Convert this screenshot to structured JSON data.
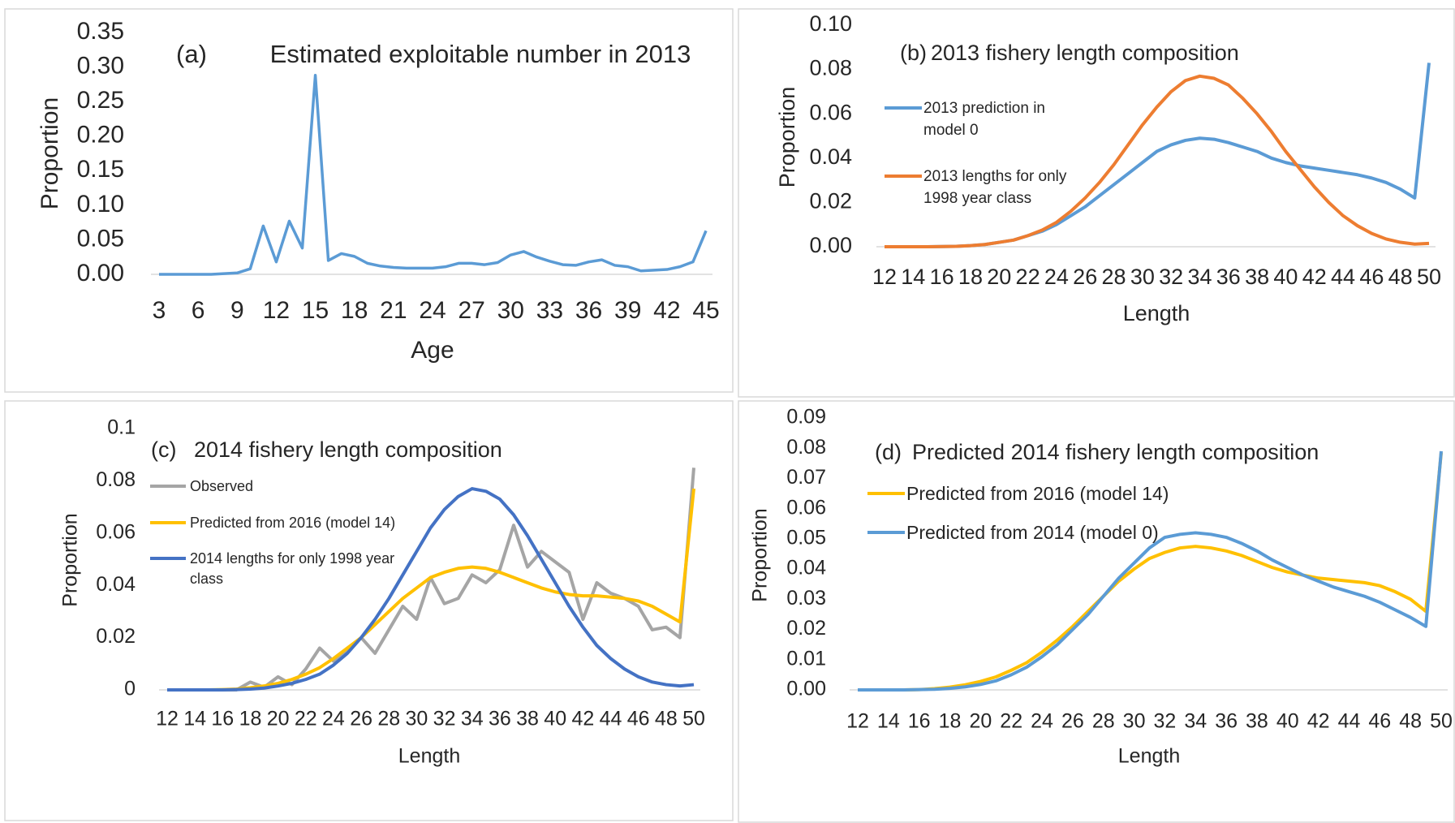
{
  "chart_data": [
    {
      "type": "line",
      "label": "(a)",
      "title": "Estimated exploitable number in 2013",
      "x_label": "Age",
      "y_label": "Proportion",
      "x": [
        3,
        4,
        5,
        6,
        7,
        8,
        9,
        10,
        11,
        12,
        13,
        14,
        15,
        16,
        17,
        18,
        19,
        20,
        21,
        22,
        23,
        24,
        25,
        26,
        27,
        28,
        29,
        30,
        31,
        32,
        33,
        34,
        35,
        36,
        37,
        38,
        39,
        40,
        41,
        42,
        43,
        44,
        45
      ],
      "xlim": [
        3,
        45
      ],
      "xticks": [
        3,
        6,
        9,
        12,
        15,
        18,
        21,
        24,
        27,
        30,
        33,
        36,
        39,
        42,
        45
      ],
      "ylim": [
        0,
        0.35
      ],
      "yticks": [
        {
          "value": 0,
          "label": "0.00"
        },
        0.05,
        {
          "value": 0.1,
          "label": "0.10"
        },
        0.15,
        {
          "value": 0.2,
          "label": "0.20"
        },
        0.25,
        {
          "value": 0.3,
          "label": "0.30"
        },
        0.35
      ],
      "series": [
        {
          "color": "#5b9bd5",
          "values": [
            0,
            0,
            0,
            0,
            0,
            0.001,
            0.002,
            0.008,
            0.07,
            0.018,
            0.077,
            0.038,
            0.288,
            0.02,
            0.03,
            0.026,
            0.016,
            0.012,
            0.01,
            0.009,
            0.009,
            0.009,
            0.011,
            0.016,
            0.016,
            0.014,
            0.017,
            0.028,
            0.033,
            0.025,
            0.019,
            0.014,
            0.013,
            0.018,
            0.021,
            0.013,
            0.011,
            0.005,
            0.006,
            0.007,
            0.011,
            0.018,
            0.063
          ]
        }
      ]
    },
    {
      "type": "line",
      "label": "(b)",
      "title": "2013 fishery length composition",
      "x_label": "Length",
      "y_label": "Proportion",
      "x": [
        12,
        13,
        14,
        15,
        16,
        17,
        18,
        19,
        20,
        21,
        22,
        23,
        24,
        25,
        26,
        27,
        28,
        29,
        30,
        31,
        32,
        33,
        34,
        35,
        36,
        37,
        38,
        39,
        40,
        41,
        42,
        43,
        44,
        45,
        46,
        47,
        48,
        49,
        50
      ],
      "xlim": [
        12,
        50
      ],
      "xticks": [
        12,
        14,
        16,
        18,
        20,
        22,
        24,
        26,
        28,
        30,
        32,
        34,
        36,
        38,
        40,
        42,
        44,
        46,
        48,
        50
      ],
      "ylim": [
        0,
        0.1
      ],
      "yticks": [
        {
          "value": 0,
          "label": "0.00"
        },
        0.02,
        0.04,
        0.06,
        0.08,
        {
          "value": 0.1,
          "label": "0.10"
        }
      ],
      "series": [
        {
          "name": "2013 prediction in model 0",
          "color": "#5b9bd5",
          "values": [
            0,
            0,
            0,
            0,
            0.0001,
            0.0002,
            0.0005,
            0.001,
            0.002,
            0.003,
            0.005,
            0.007,
            0.01,
            0.014,
            0.018,
            0.023,
            0.028,
            0.033,
            0.038,
            0.043,
            0.046,
            0.048,
            0.049,
            0.0485,
            0.047,
            0.045,
            0.043,
            0.04,
            0.038,
            0.0365,
            0.0355,
            0.0345,
            0.0335,
            0.0325,
            0.031,
            0.029,
            0.026,
            0.022,
            0.083
          ]
        },
        {
          "name": "2013 lengths for only 1998 year class",
          "color": "#ed7d31",
          "values": [
            0,
            0,
            0,
            0,
            0.0001,
            0.0002,
            0.0005,
            0.001,
            0.002,
            0.003,
            0.005,
            0.0075,
            0.011,
            0.016,
            0.022,
            0.029,
            0.037,
            0.046,
            0.055,
            0.063,
            0.07,
            0.075,
            0.077,
            0.076,
            0.073,
            0.067,
            0.06,
            0.052,
            0.043,
            0.035,
            0.027,
            0.02,
            0.014,
            0.0095,
            0.006,
            0.0035,
            0.002,
            0.0012,
            0.0015
          ]
        }
      ]
    },
    {
      "type": "line",
      "label": "(c)",
      "title": "2014 fishery length composition",
      "x_label": "Length",
      "y_label": "Proportion",
      "x": [
        12,
        13,
        14,
        15,
        16,
        17,
        18,
        19,
        20,
        21,
        22,
        23,
        24,
        25,
        26,
        27,
        28,
        29,
        30,
        31,
        32,
        33,
        34,
        35,
        36,
        37,
        38,
        39,
        40,
        41,
        42,
        43,
        44,
        45,
        46,
        47,
        48,
        49,
        50
      ],
      "xlim": [
        12,
        50
      ],
      "xticks": [
        12,
        14,
        16,
        18,
        20,
        22,
        24,
        26,
        28,
        30,
        32,
        34,
        36,
        38,
        40,
        42,
        44,
        46,
        48,
        50
      ],
      "ylim": [
        0,
        0.1
      ],
      "yticks": [
        0,
        0.02,
        0.04,
        0.06,
        0.08,
        0.1
      ],
      "series": [
        {
          "name": "Observed",
          "color": "#a5a5a5",
          "values": [
            0,
            0,
            0,
            0,
            0,
            0,
            0.003,
            0.001,
            0.005,
            0.002,
            0.008,
            0.016,
            0.011,
            0.015,
            0.02,
            0.014,
            0.023,
            0.032,
            0.027,
            0.043,
            0.033,
            0.035,
            0.044,
            0.041,
            0.046,
            0.063,
            0.047,
            0.053,
            0.049,
            0.045,
            0.027,
            0.041,
            0.037,
            0.035,
            0.032,
            0.023,
            0.024,
            0.02,
            0.085
          ]
        },
        {
          "name": "Predicted from 2016 (model 14)",
          "color": "#ffc000",
          "values": [
            0,
            0,
            0,
            0,
            0.0001,
            0.0003,
            0.0008,
            0.0015,
            0.0025,
            0.004,
            0.006,
            0.0085,
            0.012,
            0.016,
            0.02,
            0.025,
            0.03,
            0.035,
            0.039,
            0.043,
            0.045,
            0.0465,
            0.047,
            0.0465,
            0.045,
            0.043,
            0.041,
            0.039,
            0.0375,
            0.0365,
            0.036,
            0.036,
            0.0355,
            0.035,
            0.034,
            0.032,
            0.029,
            0.026,
            0.077
          ]
        },
        {
          "name": "2014 lengths for only 1998 year class",
          "color": "#4472c4",
          "values": [
            0,
            0,
            0,
            0,
            0,
            0.0001,
            0.0003,
            0.0007,
            0.0015,
            0.0025,
            0.004,
            0.006,
            0.0095,
            0.014,
            0.02,
            0.027,
            0.035,
            0.044,
            0.053,
            0.062,
            0.069,
            0.074,
            0.077,
            0.076,
            0.073,
            0.067,
            0.059,
            0.05,
            0.041,
            0.032,
            0.024,
            0.017,
            0.012,
            0.008,
            0.005,
            0.003,
            0.002,
            0.0015,
            0.002
          ]
        }
      ]
    },
    {
      "type": "line",
      "label": "(d)",
      "title": "Predicted 2014 fishery length composition",
      "x_label": "Length",
      "y_label": "Proportion",
      "x": [
        12,
        13,
        14,
        15,
        16,
        17,
        18,
        19,
        20,
        21,
        22,
        23,
        24,
        25,
        26,
        27,
        28,
        29,
        30,
        31,
        32,
        33,
        34,
        35,
        36,
        37,
        38,
        39,
        40,
        41,
        42,
        43,
        44,
        45,
        46,
        47,
        48,
        49,
        50
      ],
      "xlim": [
        12,
        50
      ],
      "xticks": [
        12,
        14,
        16,
        18,
        20,
        22,
        24,
        26,
        28,
        30,
        32,
        34,
        36,
        38,
        40,
        42,
        44,
        46,
        48,
        50
      ],
      "ylim": [
        0,
        0.09
      ],
      "yticks": [
        {
          "value": 0,
          "label": "0.00"
        },
        {
          "value": 0.01,
          "label": "0.01"
        },
        {
          "value": 0.02,
          "label": "0.02"
        },
        {
          "value": 0.03,
          "label": "0.03"
        },
        {
          "value": 0.04,
          "label": "0.04"
        },
        {
          "value": 0.05,
          "label": "0.05"
        },
        {
          "value": 0.06,
          "label": "0.06"
        },
        {
          "value": 0.07,
          "label": "0.07"
        },
        {
          "value": 0.08,
          "label": "0.08"
        },
        {
          "value": 0.09,
          "label": "0.09"
        }
      ],
      "series": [
        {
          "name": "Predicted from 2016 (model 14)",
          "color": "#ffc000",
          "values": [
            0,
            0,
            0,
            0,
            0.0001,
            0.0004,
            0.0009,
            0.0017,
            0.0028,
            0.0043,
            0.0065,
            0.009,
            0.0125,
            0.0165,
            0.021,
            0.026,
            0.031,
            0.036,
            0.04,
            0.0435,
            0.0455,
            0.047,
            0.0475,
            0.047,
            0.046,
            0.0445,
            0.0425,
            0.0405,
            0.039,
            0.038,
            0.037,
            0.0365,
            0.036,
            0.0355,
            0.0345,
            0.0325,
            0.03,
            0.026,
            0.0785
          ]
        },
        {
          "name": "Predicted from 2014 (model 0)",
          "color": "#5b9bd5",
          "values": [
            0,
            0,
            0,
            0,
            0.0001,
            0.0002,
            0.0005,
            0.001,
            0.0018,
            0.003,
            0.005,
            0.0075,
            0.011,
            0.015,
            0.02,
            0.025,
            0.031,
            0.037,
            0.042,
            0.047,
            0.0505,
            0.0515,
            0.052,
            0.0515,
            0.0505,
            0.0485,
            0.046,
            0.043,
            0.0405,
            0.038,
            0.036,
            0.034,
            0.0325,
            0.031,
            0.029,
            0.0265,
            0.024,
            0.021,
            0.079
          ]
        }
      ]
    }
  ]
}
